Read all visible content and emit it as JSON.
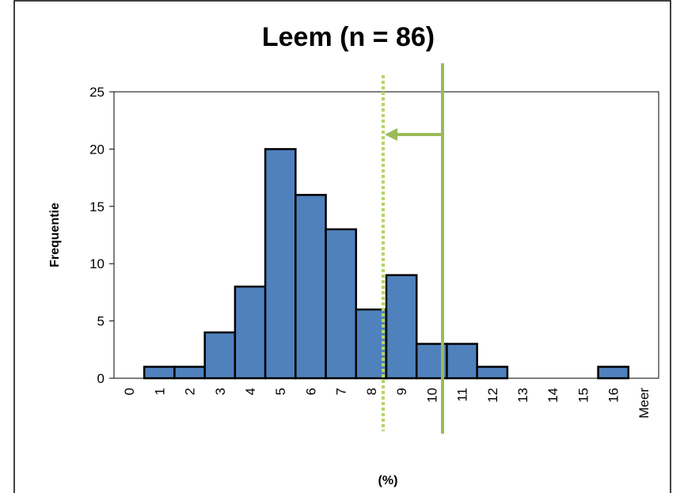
{
  "chart_data": {
    "type": "bar",
    "title": "Leem (n = 86)",
    "x_label": "(%)",
    "y_label": "Frequentie",
    "categories": [
      "0",
      "1",
      "2",
      "3",
      "4",
      "5",
      "6",
      "7",
      "8",
      "9",
      "10",
      "11",
      "12",
      "13",
      "14",
      "15",
      "16",
      "Meer"
    ],
    "values": [
      0,
      1,
      1,
      4,
      8,
      20,
      16,
      13,
      6,
      9,
      3,
      3,
      1,
      0,
      0,
      0,
      1,
      0
    ],
    "color": "#4f81bd",
    "ylim": [
      0,
      25
    ],
    "yticks": [
      0,
      5,
      10,
      15,
      20,
      25
    ],
    "grid": false
  }
}
